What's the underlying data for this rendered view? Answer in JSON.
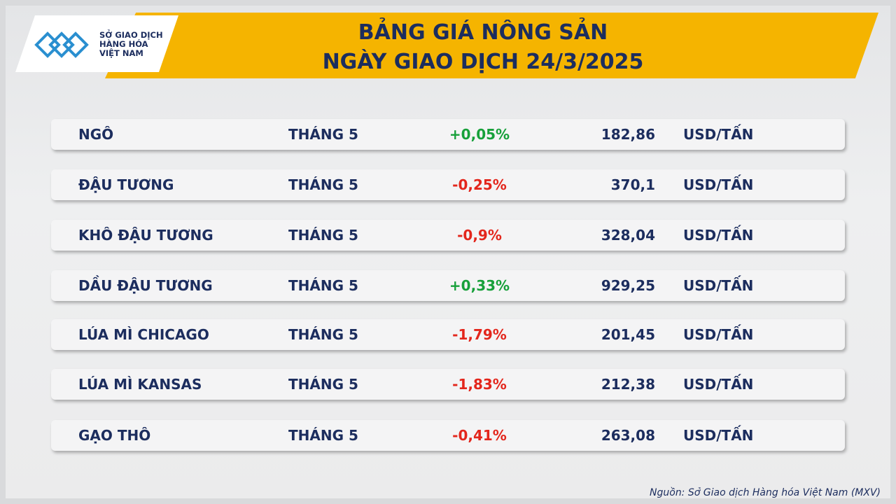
{
  "logo": {
    "lines": [
      "SỞ GIAO DỊCH",
      "HÀNG HÓA",
      "VIỆT NAM"
    ]
  },
  "header": {
    "title": [
      "BẢNG GIÁ NÔNG SẢN",
      "NGÀY GIAO DỊCH 24/3/2025"
    ]
  },
  "table": {
    "rows": [
      [
        "NGÔ",
        "THÁNG 5",
        "+0,05%",
        "182,86",
        "USD/TẤN"
      ],
      [
        "ĐẬU TƯƠNG",
        "THÁNG 5",
        "-0,25%",
        "370,1",
        "USD/TẤN"
      ],
      [
        "KHÔ ĐẬU TƯƠNG",
        "THÁNG 5",
        "-0,9%",
        "328,04",
        "USD/TẤN"
      ],
      [
        "DẦU ĐẬU TƯƠNG",
        "THÁNG 5",
        "+0,33%",
        "929,25",
        "USD/TẤN"
      ],
      [
        "LÚA MÌ CHICAGO",
        "THÁNG 5",
        "-1,79%",
        "201,45",
        "USD/TẤN"
      ],
      [
        "LÚA MÌ KANSAS",
        "THÁNG 5",
        "-1,83%",
        "212,38",
        "USD/TẤN"
      ],
      [
        "GẠO THÔ",
        "THÁNG 5",
        "-0,41%",
        "263,08",
        "USD/TẤN"
      ]
    ]
  },
  "source": "Nguồn: Sở Giao dịch Hàng hóa Việt Nam (MXV)"
}
